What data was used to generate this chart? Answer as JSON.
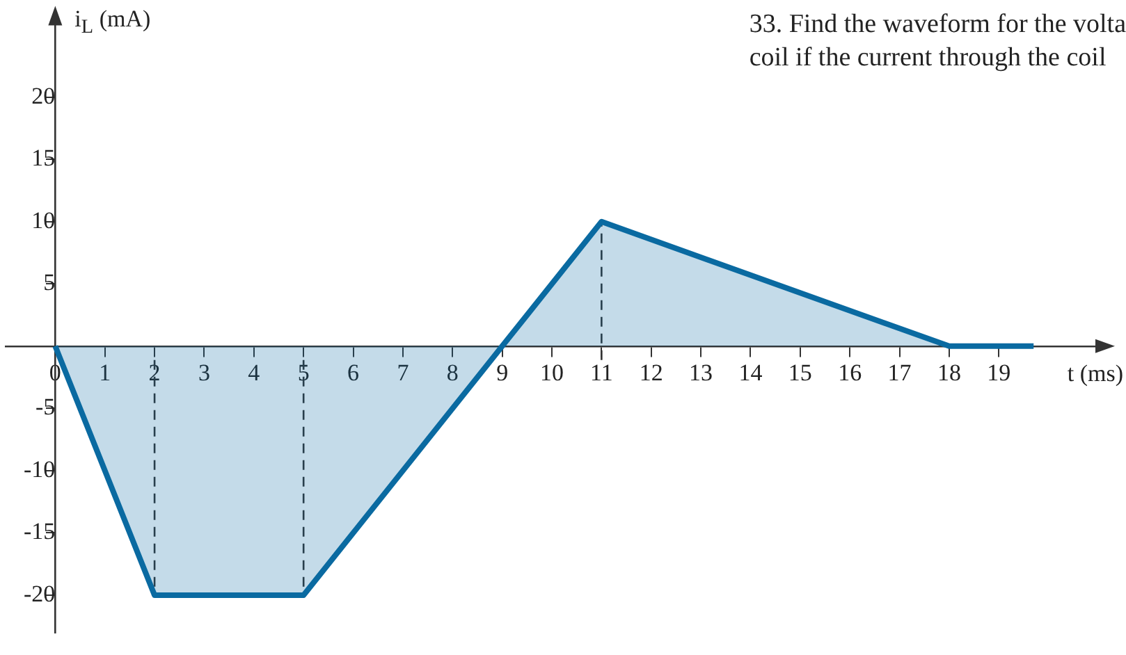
{
  "chart_data": {
    "type": "area",
    "annotations": [
      "33. Find the waveform for the volta",
      "coil if the current through the coil"
    ],
    "xlabel": "t (ms)",
    "ylabel": "i$_{L}$ (mA)",
    "x": [
      0,
      2,
      5,
      9,
      11,
      18,
      19.7
    ],
    "series": [
      {
        "color": "#0a6aa1",
        "values": [
          0,
          -20,
          -20,
          0,
          10,
          0,
          0
        ]
      }
    ],
    "ref_lines": [
      {
        "axis": "x",
        "value": 2,
        "color": "#333333",
        "line_style": "dashed"
      },
      {
        "axis": "x",
        "value": 5,
        "color": "#333333",
        "line_style": "dashed"
      },
      {
        "axis": "x",
        "value": 11,
        "color": "#333333",
        "line_style": "dashed"
      }
    ],
    "xlim": [
      -1,
      21
    ],
    "ylim": [
      -23,
      26
    ],
    "xticks": [
      0,
      1,
      2,
      3,
      4,
      5,
      6,
      7,
      8,
      9,
      10,
      11,
      12,
      13,
      14,
      15,
      16,
      17,
      18,
      19
    ],
    "yticks": [
      -20,
      -15,
      -10,
      -5,
      5,
      10,
      15,
      20
    ],
    "grid": false,
    "legend": false
  }
}
